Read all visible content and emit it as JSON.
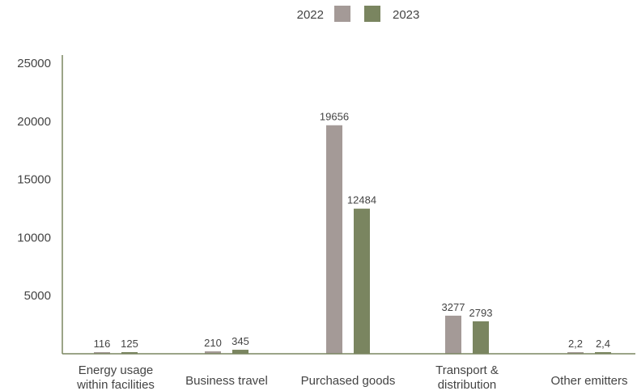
{
  "chart_data": {
    "type": "bar",
    "categories": [
      [
        "Energy usage",
        "within facilities"
      ],
      [
        "Business travel"
      ],
      [
        "Purchased goods"
      ],
      [
        "Transport &",
        "distribution"
      ],
      [
        "Other emitters"
      ]
    ],
    "series": [
      {
        "name": "2022",
        "color": "#a49a97",
        "values": [
          116,
          210,
          19656,
          3277,
          2.2
        ],
        "labels": [
          "116",
          "210",
          "19656",
          "3277",
          "2,2"
        ]
      },
      {
        "name": "2023",
        "color": "#7a8560",
        "values": [
          125,
          345,
          12484,
          2793,
          2.4
        ],
        "labels": [
          "125",
          "345",
          "12484",
          "2793",
          "2,4"
        ]
      }
    ],
    "yticks": [
      5000,
      10000,
      15000,
      20000,
      25000
    ],
    "ylim": [
      0,
      25000
    ],
    "grid": false,
    "legend_position": "top-center",
    "axis_color": "#7a8560"
  }
}
